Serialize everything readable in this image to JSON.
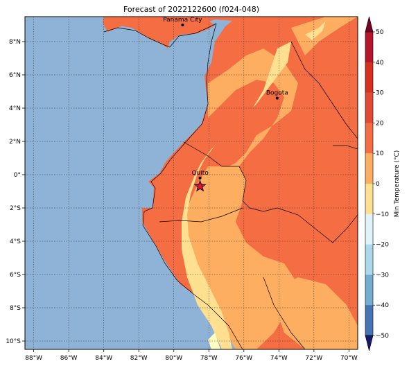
{
  "title": "Forecast of 2022122600 (f024-048)",
  "map": {
    "lon_range": [
      -88.5,
      -69.5
    ],
    "lat_range": [
      -10.5,
      9.5
    ],
    "xticks": [
      {
        "lon": -88,
        "label": "88°W"
      },
      {
        "lon": -86,
        "label": "86°W"
      },
      {
        "lon": -84,
        "label": "84°W"
      },
      {
        "lon": -82,
        "label": "82°W"
      },
      {
        "lon": -80,
        "label": "80°W"
      },
      {
        "lon": -78,
        "label": "78°W"
      },
      {
        "lon": -76,
        "label": "76°W"
      },
      {
        "lon": -74,
        "label": "74°W"
      },
      {
        "lon": -72,
        "label": "72°W"
      },
      {
        "lon": -70,
        "label": "70°W"
      }
    ],
    "yticks": [
      {
        "lat": 8,
        "label": "8°N"
      },
      {
        "lat": 6,
        "label": "6°N"
      },
      {
        "lat": 4,
        "label": "4°N"
      },
      {
        "lat": 2,
        "label": "2°N"
      },
      {
        "lat": 0,
        "label": "0°"
      },
      {
        "lat": -2,
        "label": "2°S"
      },
      {
        "lat": -4,
        "label": "4°S"
      },
      {
        "lat": -6,
        "label": "6°S"
      },
      {
        "lat": -8,
        "label": "8°S"
      },
      {
        "lat": -10,
        "label": "10°S"
      }
    ],
    "cities": [
      {
        "name": "Panama City",
        "lon": -79.5,
        "lat": 9.0
      },
      {
        "name": "Bogota",
        "lon": -74.1,
        "lat": 4.6
      },
      {
        "name": "Quito",
        "lon": -78.5,
        "lat": -0.2
      }
    ],
    "marker": {
      "type": "star",
      "lon": -78.5,
      "lat": -0.7,
      "color": "#e0112b"
    }
  },
  "colorbar": {
    "label": "Min Temperature (°C)",
    "ticks": [
      "50",
      "40",
      "30",
      "20",
      "10",
      "0",
      "−10",
      "−20",
      "−30",
      "−40",
      "−50"
    ],
    "colors": [
      "#7a0026",
      "#b5162b",
      "#e34a33",
      "#f46d43",
      "#fdae61",
      "#fee090",
      "#ffffbf",
      "#e0f3f8",
      "#abd9e9",
      "#74add1",
      "#4575b4",
      "#313695",
      "#16186b"
    ],
    "ocean_color": "#8fb2d7"
  }
}
